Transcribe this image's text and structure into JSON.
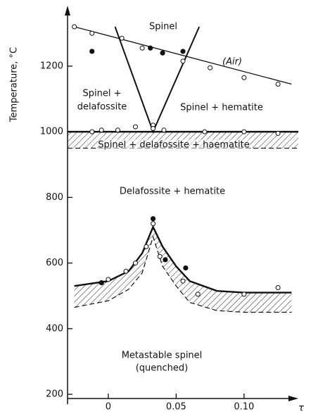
{
  "chart_data": {
    "type": "phase-diagram",
    "y_label": "Temperature, °C",
    "x_label": "τ",
    "xlim": [
      -0.03,
      0.14
    ],
    "ylim": [
      170,
      1380
    ],
    "xticks": [
      0,
      0.05,
      {
        "value": 0.1,
        "label": "0.10"
      }
    ],
    "yticks": [
      200,
      400,
      600,
      800,
      1000,
      1200
    ],
    "annotations": [
      "Spinel",
      "(Air)",
      "Spinel +",
      "delafossite",
      "Spinel + hematite",
      "Spinel + delafossite + haematite",
      "Delafossite + hematite",
      "Metastable spinel",
      "(quenched)"
    ],
    "bands": [
      {
        "x": [
          -0.03,
          0.14
        ],
        "upper": [
          1000,
          1000
        ],
        "lower": [
          950,
          950
        ]
      },
      {
        "x": [
          -0.025,
          0,
          0.015,
          0.025,
          0.033,
          0.04,
          0.05,
          0.06,
          0.08,
          0.1,
          0.135
        ],
        "upper": [
          530,
          545,
          575,
          630,
          710,
          650,
          590,
          545,
          515,
          510,
          510
        ],
        "lower": [
          465,
          485,
          520,
          570,
          680,
          590,
          530,
          480,
          455,
          450,
          450
        ]
      }
    ],
    "lines": [
      {
        "x": [
          -0.025,
          0.135
        ],
        "y": [
          1320,
          1145
        ]
      },
      {
        "x": [
          0.005,
          0.033,
          0.067
        ],
        "y": [
          1320,
          1000,
          1320
        ]
      }
    ],
    "open_points": {
      "x": [
        -0.025,
        -0.012,
        0.01,
        0.025,
        0.055,
        0.075,
        0.1,
        0.125,
        -0.012,
        -0.005,
        0.007,
        0.02,
        0.033,
        0.033,
        0.041,
        0.071,
        0.1,
        0.125,
        0,
        0.013,
        0.02,
        0.028,
        0.033,
        0.038,
        0.055,
        0.066,
        0.1,
        0.125
      ],
      "y": [
        1320,
        1300,
        1285,
        1255,
        1215,
        1195,
        1165,
        1145,
        1000,
        1005,
        1005,
        1015,
        1020,
        1010,
        1005,
        1000,
        1000,
        995,
        550,
        575,
        600,
        650,
        720,
        620,
        545,
        505,
        505,
        525
      ]
    },
    "filled_points": {
      "x": [
        -0.012,
        0.031,
        0.04,
        0.055,
        0.033,
        0.042,
        0.057,
        -0.005
      ],
      "y": [
        1245,
        1255,
        1240,
        1245,
        735,
        610,
        585,
        540
      ]
    }
  }
}
